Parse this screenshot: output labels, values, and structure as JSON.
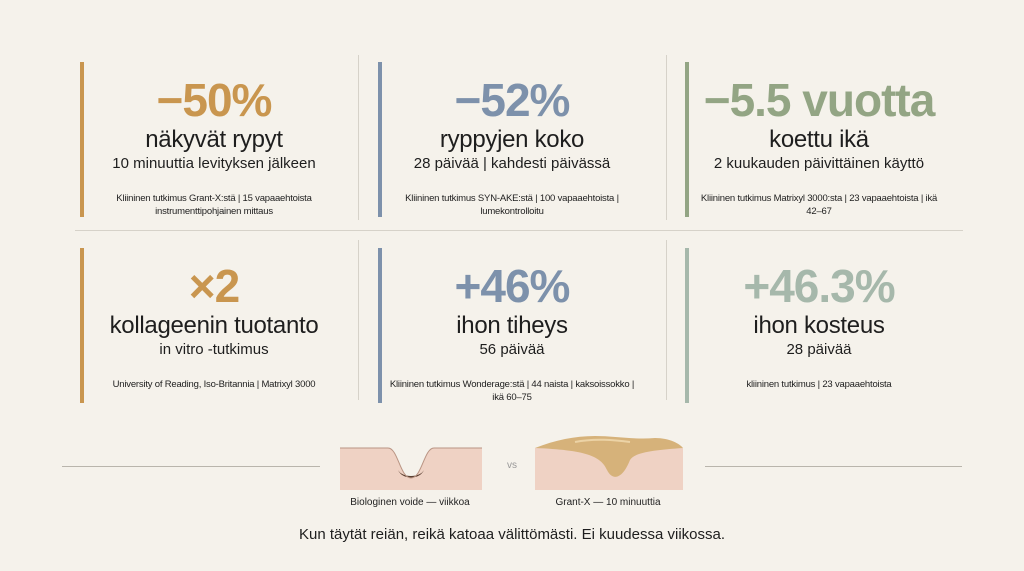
{
  "cards": [
    {
      "stat": "−50%",
      "title": "näkyvät rypyt",
      "subtitle": "10 minuuttia levityksen jälkeen",
      "source": "Kliininen tutkimus Grant-X:stä | 15 vapaaehtoista instrumenttipohjainen mittaus",
      "color": "#c9964f"
    },
    {
      "stat": "−52%",
      "title": "ryppyjen koko",
      "subtitle": "28 päivää | kahdesti päivässä",
      "source": "Kliininen tutkimus SYN-AKE:stä | 100 vapaaehtoista | lumekontrolloitu",
      "color": "#7d91ab"
    },
    {
      "stat": "−5.5 vuotta",
      "title": "koettu ikä",
      "subtitle": "2 kuukauden päivittäinen käyttö",
      "source": "Kliininen tutkimus Matrixyl 3000:sta | 23 vapaaehtoista | ikä 42–67",
      "color": "#93a584"
    },
    {
      "stat": "×2",
      "title": "kollageenin tuotanto",
      "subtitle": "in vitro -tutkimus",
      "source": "University of Reading, Iso-Britannia | Matrixyl 3000",
      "color": "#c9964f"
    },
    {
      "stat": "+46%",
      "title": "ihon tiheys",
      "subtitle": "56 päivää",
      "source": "Kliininen tutkimus Wonderage:stä | 44 naista | kaksoissokko | ikä 60–75",
      "color": "#7d91ab"
    },
    {
      "stat": "+46.3%",
      "title": "ihon kosteus",
      "subtitle": "28 päivää",
      "source": "kliininen tutkimus | 23 vapaaehtoista",
      "color": "#a6b8ab"
    }
  ],
  "comparison": {
    "left_label": "Biologinen voide — viikkoa",
    "vs": "vs",
    "right_label": "Grant-X — 10 minuuttia",
    "tagline": "Kun täytät reiän, reikä katoaa välittömästi. Ei kuudessa viikossa."
  }
}
